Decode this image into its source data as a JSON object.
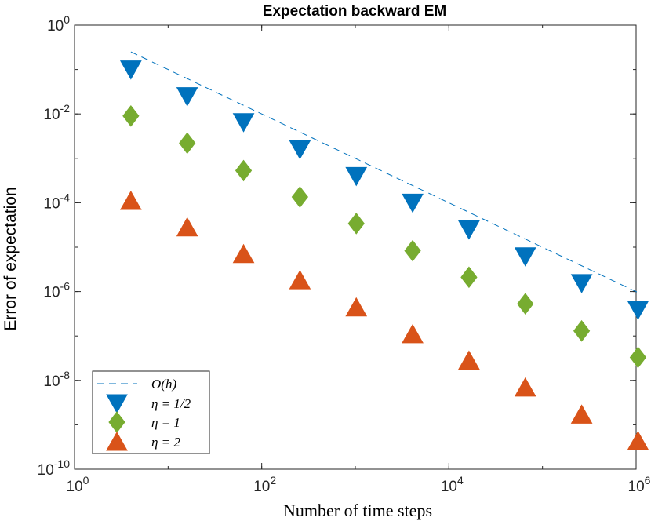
{
  "chart_data": {
    "type": "scatter",
    "title": "Expectation backward EM",
    "xlabel": "Number of time steps",
    "ylabel": "Error of expectation",
    "xscale": "log",
    "yscale": "log",
    "xlim": [
      1,
      1000000
    ],
    "ylim": [
      1e-10,
      1
    ],
    "grid": false,
    "legend_position": "bottom-left",
    "x_ticks": [
      {
        "value": 1,
        "base": "10",
        "exp": "0"
      },
      {
        "value": 100,
        "base": "10",
        "exp": "2"
      },
      {
        "value": 10000,
        "base": "10",
        "exp": "4"
      },
      {
        "value": 1000000,
        "base": "10",
        "exp": "6"
      }
    ],
    "y_ticks": [
      {
        "value": 1,
        "base": "10",
        "exp": "0"
      },
      {
        "value": 0.01,
        "base": "10",
        "exp": "-2"
      },
      {
        "value": 0.0001,
        "base": "10",
        "exp": "-4"
      },
      {
        "value": 1e-06,
        "base": "10",
        "exp": "-6"
      },
      {
        "value": 1e-08,
        "base": "10",
        "exp": "-8"
      },
      {
        "value": 1e-10,
        "base": "10",
        "exp": "-10"
      }
    ],
    "reference_line": {
      "name": "O(h)",
      "x": [
        4,
        1048576
      ],
      "y": [
        0.25,
        9.5e-07
      ],
      "color": "#0072BD"
    },
    "series": [
      {
        "name": "η = 1/2",
        "marker": "triangle-down",
        "color": "#0072BD",
        "x": [
          4,
          16,
          64,
          256,
          1024,
          4096,
          16384,
          65536,
          262144,
          1048576
        ],
        "y": [
          0.1,
          0.025,
          0.0065,
          0.0016,
          0.0004,
          0.0001,
          2.5e-05,
          6.2e-06,
          1.55e-06,
          3.9e-07
        ]
      },
      {
        "name": "η = 1",
        "marker": "diamond",
        "color": "#77AC30",
        "x": [
          4,
          16,
          64,
          256,
          1024,
          4096,
          16384,
          65536,
          262144,
          1048576
        ],
        "y": [
          0.009,
          0.0022,
          0.00053,
          0.000135,
          3.4e-05,
          8.3e-06,
          2.1e-06,
          5.3e-07,
          1.3e-07,
          3.3e-08
        ]
      },
      {
        "name": "η = 2",
        "marker": "triangle-up",
        "color": "#D95319",
        "x": [
          4,
          16,
          64,
          256,
          1024,
          4096,
          16384,
          65536,
          262144,
          1048576
        ],
        "y": [
          0.00011,
          2.8e-05,
          7e-06,
          1.8e-06,
          4.4e-07,
          1.1e-07,
          2.8e-08,
          6.9e-09,
          1.7e-09,
          4.3e-10
        ]
      }
    ]
  }
}
